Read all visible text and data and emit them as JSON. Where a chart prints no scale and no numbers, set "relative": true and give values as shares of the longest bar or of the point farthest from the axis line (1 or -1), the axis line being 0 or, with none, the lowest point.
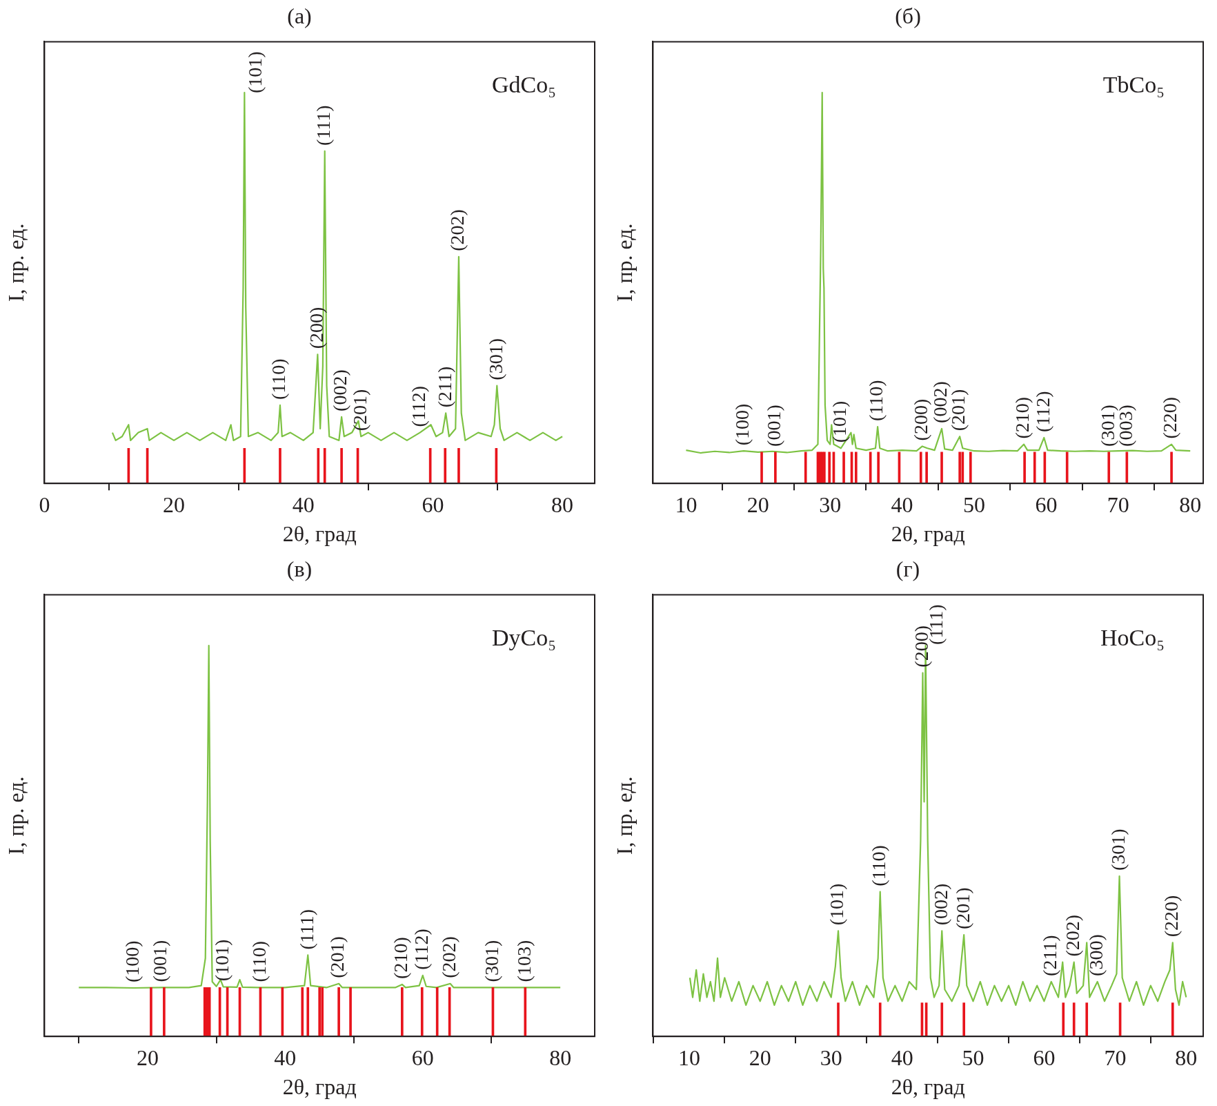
{
  "chart_data": [
    {
      "type": "line",
      "title": "(а)",
      "xlabel": "2θ, град",
      "ylabel": "I, пр. ед.",
      "relative": true,
      "marker": "none",
      "xlim": [
        0,
        85
      ],
      "xticks": [
        0,
        20,
        40,
        60,
        80
      ],
      "series": [
        {
          "color": "#7dc243",
          "x": [
            10.5,
            11,
            12,
            13,
            13.3,
            14.5,
            15.9,
            16.2,
            18,
            20,
            22,
            24,
            26,
            28,
            28.8,
            29.2,
            30.3,
            30.7,
            30.9,
            31.1,
            31.5,
            33,
            35,
            36.1,
            36.4,
            36.7,
            38,
            40,
            41.5,
            42.2,
            42.6,
            43.0,
            43.3,
            43.6,
            44,
            45.5,
            45.9,
            46.3,
            47.5,
            48.5,
            48.9,
            50,
            52,
            54,
            56,
            58,
            59.7,
            60.5,
            61.5,
            62.0,
            62.5,
            63.5,
            64.0,
            64.4,
            65,
            67,
            69,
            69.5,
            69.9,
            70.4,
            71,
            73,
            75,
            77,
            79,
            80
          ],
          "values": [
            0.13,
            0.11,
            0.12,
            0.15,
            0.11,
            0.13,
            0.14,
            0.11,
            0.13,
            0.11,
            0.13,
            0.11,
            0.13,
            0.11,
            0.15,
            0.11,
            0.12,
            0.5,
            1.0,
            0.45,
            0.12,
            0.13,
            0.11,
            0.13,
            0.2,
            0.12,
            0.13,
            0.11,
            0.13,
            0.33,
            0.14,
            0.3,
            0.85,
            0.25,
            0.12,
            0.11,
            0.17,
            0.12,
            0.13,
            0.16,
            0.12,
            0.13,
            0.11,
            0.13,
            0.11,
            0.13,
            0.15,
            0.12,
            0.13,
            0.18,
            0.12,
            0.14,
            0.58,
            0.18,
            0.11,
            0.13,
            0.12,
            0.15,
            0.25,
            0.14,
            0.11,
            0.13,
            0.11,
            0.13,
            0.11,
            0.12
          ]
        },
        {
          "type": "bar",
          "color": "#e8141c",
          "x": [
            13,
            15.9,
            30.9,
            36.4,
            42.3,
            43.3,
            45.9,
            48.4,
            59.6,
            61.9,
            64.0,
            69.8
          ],
          "values": [
            0.09,
            0.09,
            0.09,
            0.09,
            0.09,
            0.09,
            0.09,
            0.09,
            0.09,
            0.09,
            0.09,
            0.09
          ]
        }
      ],
      "annotations": [
        "GdCo₅",
        {
          "text": "(101)",
          "x": 30.9,
          "y": 1.0
        },
        {
          "text": "(111)",
          "x": 43.3,
          "y": 0.85
        },
        {
          "text": "(110)",
          "x": 36.4,
          "y": 0.2
        },
        {
          "text": "(200)",
          "x": 42.2,
          "y": 0.33
        },
        {
          "text": "(002)",
          "x": 45.9,
          "y": 0.17
        },
        {
          "text": "(201)",
          "x": 48.9,
          "y": 0.12
        },
        {
          "text": "(112)",
          "x": 58,
          "y": 0.13
        },
        {
          "text": "(211)",
          "x": 62.0,
          "y": 0.18
        },
        {
          "text": "(202)",
          "x": 64.0,
          "y": 0.58
        },
        {
          "text": "(301)",
          "x": 69.9,
          "y": 0.25
        }
      ]
    },
    {
      "type": "line",
      "title": "(б)",
      "xlabel": "2θ, град",
      "ylabel": "I, пр. ед.",
      "relative": true,
      "marker": "none",
      "xlim": [
        5.4,
        81.8
      ],
      "xticks": [
        10,
        20,
        30,
        40,
        50,
        60,
        70,
        80
      ],
      "series": [
        {
          "color": "#7dc243",
          "x": [
            10,
            12,
            14,
            16,
            18,
            20,
            22,
            24,
            26,
            27.5,
            28.3,
            28.7,
            28.9,
            29.05,
            29.15,
            29.3,
            29.6,
            30,
            30.2,
            30.5,
            31.5,
            32.9,
            33.1,
            33.3,
            33.6,
            35,
            36.3,
            36.6,
            36.9,
            38,
            40,
            42,
            42.8,
            43.5,
            44.5,
            45.5,
            45.9,
            47,
            48.0,
            48.4,
            50,
            52,
            54,
            56,
            56.9,
            57.4,
            59,
            59.7,
            60.2,
            62,
            64,
            66,
            68,
            70,
            72,
            74,
            76,
            77.4,
            78,
            80
          ],
          "values": [
            0.085,
            0.078,
            0.082,
            0.079,
            0.083,
            0.08,
            0.082,
            0.079,
            0.083,
            0.085,
            0.1,
            0.6,
            1.0,
            0.55,
            0.5,
            0.2,
            0.11,
            0.1,
            0.15,
            0.1,
            0.09,
            0.13,
            0.1,
            0.125,
            0.09,
            0.085,
            0.09,
            0.145,
            0.09,
            0.083,
            0.085,
            0.083,
            0.095,
            0.09,
            0.085,
            0.14,
            0.088,
            0.085,
            0.12,
            0.09,
            0.083,
            0.082,
            0.084,
            0.083,
            0.1,
            0.085,
            0.085,
            0.117,
            0.085,
            0.083,
            0.082,
            0.083,
            0.082,
            0.083,
            0.084,
            0.082,
            0.083,
            0.1,
            0.085,
            0.083
          ]
        },
        {
          "type": "bar",
          "color": "#e8141c",
          "x": [
            20.5,
            22.4,
            26.6,
            28.3,
            28.6,
            28.9,
            29.2,
            29.9,
            30.5,
            31.9,
            33.0,
            33.6,
            35.6,
            36.7,
            39.6,
            42.6,
            43.4,
            45.5,
            48.0,
            48.4,
            49.5,
            57.0,
            58.4,
            59.8,
            62.9,
            68.7,
            71.2,
            77.4
          ],
          "values": [
            0.08,
            0.08,
            0.08,
            0.08,
            0.08,
            0.08,
            0.08,
            0.08,
            0.08,
            0.08,
            0.08,
            0.08,
            0.08,
            0.08,
            0.08,
            0.08,
            0.08,
            0.08,
            0.08,
            0.08,
            0.08,
            0.08,
            0.08,
            0.08,
            0.08,
            0.08,
            0.08,
            0.08
          ]
        }
      ],
      "annotations": [
        "TbCo₅",
        {
          "text": "(100)",
          "x": 18,
          "y": 0.083
        },
        {
          "text": "(001)",
          "x": 22.4,
          "y": 0.08
        },
        {
          "text": "(101)",
          "x": 31.5,
          "y": 0.09
        },
        {
          "text": "(110)",
          "x": 36.6,
          "y": 0.145
        },
        {
          "text": "(200)",
          "x": 42.8,
          "y": 0.095
        },
        {
          "text": "(002)",
          "x": 45.5,
          "y": 0.14
        },
        {
          "text": "(201)",
          "x": 48.0,
          "y": 0.12
        },
        {
          "text": "(210)",
          "x": 56.9,
          "y": 0.1
        },
        {
          "text": "(112)",
          "x": 59.7,
          "y": 0.117
        },
        {
          "text": "(301)",
          "x": 68.7,
          "y": 0.08
        },
        {
          "text": "(003)",
          "x": 71.2,
          "y": 0.08
        },
        {
          "text": "(220)",
          "x": 77.4,
          "y": 0.1
        }
      ]
    },
    {
      "type": "line",
      "title": "(в)",
      "xlabel": "2θ, град",
      "ylabel": "I, пр. ед.",
      "relative": true,
      "marker": "none",
      "xlim": [
        5,
        85
      ],
      "xticks": [
        20,
        40,
        60,
        80
      ],
      "series": [
        {
          "color": "#7dc243",
          "x": [
            10,
            14,
            18,
            22,
            26,
            27.8,
            28.4,
            28.7,
            28.9,
            29.1,
            29.4,
            30,
            30.6,
            31,
            33,
            33.4,
            33.8,
            36,
            40,
            42.8,
            43.3,
            43.7,
            46,
            47.8,
            48.3,
            52,
            56,
            57,
            57.5,
            59.5,
            60,
            60.5,
            62,
            64,
            64.5,
            68,
            72,
            76,
            80
          ],
          "values": [
            0.125,
            0.125,
            0.124,
            0.125,
            0.125,
            0.13,
            0.2,
            0.6,
            1.0,
            0.5,
            0.14,
            0.128,
            0.145,
            0.127,
            0.126,
            0.145,
            0.126,
            0.125,
            0.125,
            0.13,
            0.208,
            0.13,
            0.125,
            0.135,
            0.125,
            0.125,
            0.125,
            0.133,
            0.125,
            0.13,
            0.156,
            0.128,
            0.125,
            0.135,
            0.125,
            0.125,
            0.125,
            0.125,
            0.125
          ]
        },
        {
          "type": "bar",
          "color": "#e8141c",
          "x": [
            20.5,
            22.4,
            28.3,
            28.5,
            28.7,
            29.0,
            30.5,
            31.6,
            33.4,
            36.4,
            39.6,
            42.5,
            43.3,
            45.0,
            45.4,
            47.8,
            49.5,
            57.0,
            59.9,
            62.1,
            63.9,
            70.2,
            74.9
          ],
          "values": [
            0.125,
            0.125,
            0.125,
            0.125,
            0.125,
            0.125,
            0.125,
            0.125,
            0.125,
            0.125,
            0.125,
            0.125,
            0.125,
            0.125,
            0.125,
            0.125,
            0.125,
            0.125,
            0.125,
            0.125,
            0.125,
            0.125,
            0.125
          ]
        }
      ],
      "annotations": [
        "DyCo₅",
        {
          "text": "(100)",
          "x": 18,
          "y": 0.124
        },
        {
          "text": "(001)",
          "x": 22,
          "y": 0.125
        },
        {
          "text": "(101)",
          "x": 31,
          "y": 0.127
        },
        {
          "text": "(110)",
          "x": 36.4,
          "y": 0.125
        },
        {
          "text": "(111)",
          "x": 43.3,
          "y": 0.208
        },
        {
          "text": "(201)",
          "x": 47.8,
          "y": 0.135
        },
        {
          "text": "(210)",
          "x": 57,
          "y": 0.133
        },
        {
          "text": "(112)",
          "x": 60,
          "y": 0.156
        },
        {
          "text": "(202)",
          "x": 64,
          "y": 0.135
        },
        {
          "text": "(301)",
          "x": 70.2,
          "y": 0.125
        },
        {
          "text": "(103)",
          "x": 74.9,
          "y": 0.125
        }
      ]
    },
    {
      "type": "line",
      "title": "(г)",
      "xlabel": "2θ, град",
      "ylabel": "I, пр. ед.",
      "relative": true,
      "marker": "none",
      "xlim": [
        4.9,
        82.4
      ],
      "xticks": [
        10,
        20,
        30,
        40,
        50,
        60,
        70,
        80
      ],
      "series": [
        {
          "color": "#7dc243",
          "x": [
            10.1,
            10.5,
            11,
            11.5,
            12,
            12.5,
            13,
            13.5,
            14,
            14.4,
            15,
            16,
            17,
            18,
            19,
            20,
            21,
            22,
            23,
            24,
            25,
            26,
            27,
            28,
            29,
            30,
            30.6,
            31,
            31.4,
            32,
            33,
            34,
            35,
            36,
            36.6,
            36.9,
            37.3,
            38,
            39,
            40,
            41,
            42,
            42.6,
            42.9,
            43.1,
            43.3,
            43.6,
            44,
            44.5,
            45.2,
            45.6,
            46,
            47,
            48,
            48.7,
            49.1,
            50,
            51,
            52,
            53,
            54,
            55,
            56,
            57,
            58,
            59,
            60,
            61,
            62,
            62.6,
            63,
            63.6,
            64.2,
            64.6,
            65.5,
            66,
            66.4,
            67.5,
            68.5,
            69.5,
            70.2,
            70.6,
            71,
            72,
            73,
            74,
            75,
            76,
            77,
            77.7,
            78.1,
            78.5,
            79,
            79.5,
            80
          ],
          "values": [
            0.15,
            0.1,
            0.17,
            0.09,
            0.16,
            0.1,
            0.14,
            0.09,
            0.2,
            0.1,
            0.15,
            0.09,
            0.14,
            0.08,
            0.13,
            0.09,
            0.14,
            0.08,
            0.13,
            0.09,
            0.14,
            0.08,
            0.13,
            0.09,
            0.14,
            0.1,
            0.18,
            0.27,
            0.15,
            0.09,
            0.14,
            0.08,
            0.13,
            0.1,
            0.2,
            0.37,
            0.15,
            0.09,
            0.13,
            0.09,
            0.14,
            0.12,
            0.5,
            0.93,
            0.6,
            1.0,
            0.5,
            0.15,
            0.1,
            0.13,
            0.27,
            0.12,
            0.09,
            0.13,
            0.26,
            0.13,
            0.09,
            0.14,
            0.08,
            0.13,
            0.09,
            0.13,
            0.08,
            0.14,
            0.09,
            0.13,
            0.09,
            0.14,
            0.1,
            0.19,
            0.1,
            0.13,
            0.19,
            0.11,
            0.13,
            0.24,
            0.1,
            0.14,
            0.09,
            0.13,
            0.16,
            0.41,
            0.15,
            0.09,
            0.14,
            0.08,
            0.13,
            0.09,
            0.14,
            0.17,
            0.24,
            0.12,
            0.08,
            0.14,
            0.1
          ]
        },
        {
          "type": "bar",
          "color": "#e8141c",
          "x": [
            31.0,
            36.9,
            42.8,
            43.4,
            45.6,
            48.7,
            62.7,
            64.2,
            66.0,
            70.7,
            78.1
          ],
          "values": [
            0.086,
            0.086,
            0.086,
            0.086,
            0.086,
            0.086,
            0.086,
            0.086,
            0.086,
            0.086,
            0.086
          ]
        }
      ],
      "annotations": [
        "HoCo₅",
        {
          "text": "(101)",
          "x": 31,
          "y": 0.27
        },
        {
          "text": "(110)",
          "x": 36.9,
          "y": 0.37
        },
        {
          "text": "(200)",
          "x": 42.9,
          "y": 0.93
        },
        {
          "text": "(111)",
          "x": 43.3,
          "y": 1.0
        },
        {
          "text": "(002)",
          "x": 45.6,
          "y": 0.27
        },
        {
          "text": "(201)",
          "x": 48.7,
          "y": 0.26
        },
        {
          "text": "(211)",
          "x": 61,
          "y": 0.14
        },
        {
          "text": "(202)",
          "x": 64.2,
          "y": 0.19
        },
        {
          "text": "(300)",
          "x": 67.5,
          "y": 0.14
        },
        {
          "text": "(301)",
          "x": 70.6,
          "y": 0.41
        },
        {
          "text": "(220)",
          "x": 78.1,
          "y": 0.24
        }
      ]
    }
  ]
}
